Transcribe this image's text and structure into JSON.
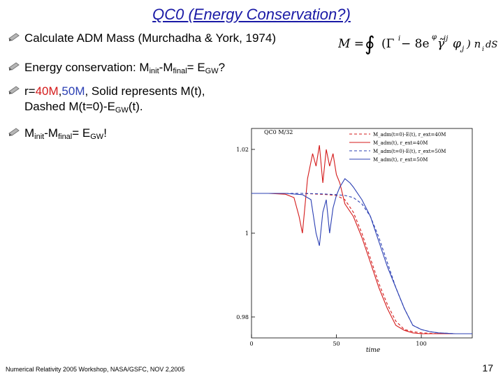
{
  "title": "QC0 (Energy Conservation?)",
  "bullets": {
    "b1": "Calculate ADM Mass (Murchadha & York, 1974)",
    "b2_pre": "Energy conservation: M",
    "b2_sub1": "init",
    "b2_mid": "-M",
    "b2_sub2": "final",
    "b2_eq": "= E",
    "b2_sub3": "GW",
    "b2_end": "?",
    "b3_pre": "r=",
    "b3_r40": "40M",
    "b3_comma": ",",
    "b3_r50": "50M",
    "b3_rest": ", Solid represents M(t),",
    "b3_line2_pre": "Dashed M(t=0)-E",
    "b3_line2_sub": "GW",
    "b3_line2_end": "(t).",
    "b4_pre": "M",
    "b4_sub1": "init",
    "b4_mid": "-M",
    "b4_sub2": "final",
    "b4_eq": "= E",
    "b4_sub3": "GW",
    "b4_end": "!"
  },
  "formula": {
    "lhs": "M =",
    "integral": "∮",
    "body": "(Γ",
    "sup_i": "i",
    "minus": " − 8e",
    "sup_phi": "φ",
    "gamma": "γ̃",
    "sup_ij": "ij",
    "phi": "φ",
    "sub_j": ",j",
    "close": ") n",
    "sub_i": "i",
    "end": "dS"
  },
  "footer": "Numerical Relativity 2005 Workshop, NASA/GSFC, NOV 2,2005",
  "page_number": "17",
  "colors": {
    "title": "#1a1aa6",
    "red": "#d41a1a",
    "blue": "#2b3fb3"
  },
  "chart_data": {
    "type": "line",
    "title": "QC0 M/32",
    "xlabel": "time",
    "ylabel": "",
    "xlim": [
      0,
      130
    ],
    "ylim": [
      0.975,
      1.025
    ],
    "xticks": [
      "0",
      "50",
      "100"
    ],
    "xtick_values": [
      0,
      50,
      100
    ],
    "yticks": [
      "1.02",
      "1",
      "0.98"
    ],
    "ytick_values": [
      1.02,
      1.0,
      0.98
    ],
    "grid": false,
    "legend_placement": "top-right",
    "legend": [
      {
        "label": "M_adm(t=0)-E(t), r_ext=40M",
        "color": "#d41a1a",
        "dash": true
      },
      {
        "label": "M_adm(t), r_ext=40M",
        "color": "#d41a1a",
        "dash": false
      },
      {
        "label": "M_adm(t=0)-E(t), r_ext=50M",
        "color": "#2b3fb3",
        "dash": true
      },
      {
        "label": "M_adm(t), r_ext=50M",
        "color": "#2b3fb3",
        "dash": false
      }
    ],
    "series": [
      {
        "name": "M_adm(t=0)-E(t), r_ext=40M",
        "color": "#d41a1a",
        "dash": true,
        "x": [
          0,
          10,
          20,
          30,
          35,
          40,
          45,
          50,
          55,
          60,
          65,
          70,
          75,
          80,
          85,
          90,
          95,
          100,
          110,
          120,
          130
        ],
        "y": [
          1.0095,
          1.0095,
          1.0095,
          1.0095,
          1.0094,
          1.0093,
          1.0092,
          1.009,
          1.008,
          1.005,
          1.0,
          0.994,
          0.988,
          0.983,
          0.979,
          0.977,
          0.9765,
          0.9762,
          0.976,
          0.976,
          0.976
        ]
      },
      {
        "name": "M_adm(t), r_ext=40M",
        "color": "#d41a1a",
        "dash": false,
        "x": [
          0,
          10,
          20,
          25,
          28,
          30,
          33,
          36,
          38,
          40,
          42,
          44,
          46,
          48,
          50,
          52,
          55,
          60,
          65,
          70,
          75,
          80,
          85,
          90,
          95,
          100,
          110,
          120,
          130
        ],
        "y": [
          1.0095,
          1.0095,
          1.0093,
          1.0085,
          1.004,
          1.0,
          1.013,
          1.019,
          1.016,
          1.021,
          1.012,
          1.02,
          1.016,
          1.019,
          1.014,
          1.012,
          1.007,
          1.004,
          0.999,
          0.993,
          0.987,
          0.982,
          0.978,
          0.9768,
          0.9762,
          0.976,
          0.976,
          0.976,
          0.976
        ]
      },
      {
        "name": "M_adm(t=0)-E(t), r_ext=50M",
        "color": "#2b3fb3",
        "dash": true,
        "x": [
          0,
          10,
          20,
          30,
          40,
          45,
          50,
          55,
          60,
          65,
          70,
          75,
          80,
          85,
          90,
          95,
          100,
          105,
          110,
          120,
          130
        ],
        "y": [
          1.0095,
          1.0095,
          1.0095,
          1.0095,
          1.0094,
          1.0093,
          1.0092,
          1.009,
          1.0085,
          1.007,
          1.004,
          0.999,
          0.993,
          0.987,
          0.982,
          0.978,
          0.977,
          0.9765,
          0.9762,
          0.976,
          0.976
        ]
      },
      {
        "name": "M_adm(t), r_ext=50M",
        "color": "#2b3fb3",
        "dash": false,
        "x": [
          0,
          10,
          20,
          30,
          35,
          38,
          40,
          42,
          44,
          46,
          48,
          50,
          52,
          55,
          58,
          60,
          65,
          70,
          75,
          80,
          85,
          90,
          95,
          100,
          105,
          110,
          120,
          130
        ],
        "y": [
          1.0095,
          1.0095,
          1.0095,
          1.0092,
          1.008,
          1.0,
          0.997,
          1.005,
          1.008,
          1.0,
          1.006,
          1.009,
          1.011,
          1.013,
          1.012,
          1.011,
          1.008,
          1.004,
          0.998,
          0.992,
          0.987,
          0.982,
          0.978,
          0.977,
          0.9765,
          0.9762,
          0.976,
          0.976
        ]
      }
    ]
  }
}
